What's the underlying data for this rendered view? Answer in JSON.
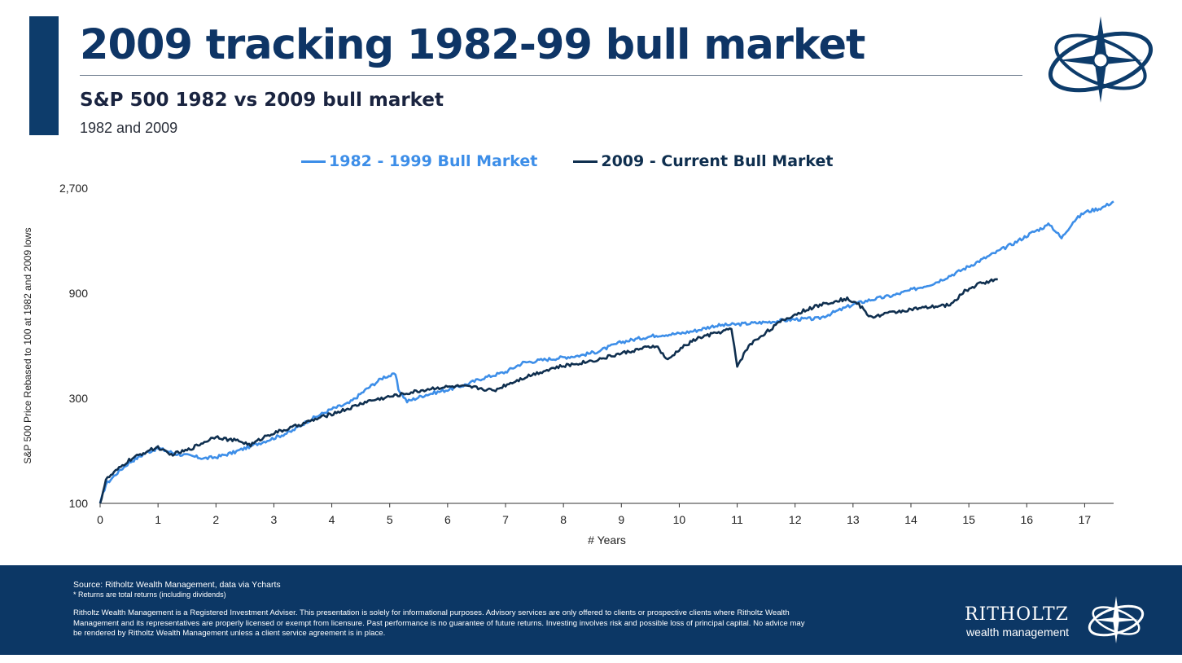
{
  "header": {
    "title": "2009 tracking 1982-99 bull market",
    "subtitle": "S&P 500 1982 vs 2009 bull market",
    "subtitle2": "1982 and 2009"
  },
  "colors": {
    "navy": "#0d3c6b",
    "series_1982": "#3d8ee8",
    "series_2009": "#0f2f4f",
    "footer_bg": "#0c3765"
  },
  "chart_data": {
    "type": "line",
    "title": "",
    "xlabel": "# Years",
    "ylabel": "S&P 500 Price Rebased to 100 at 1982 and 2009 lows",
    "y_scale": "log",
    "xlim": [
      0,
      17.5
    ],
    "ylim": [
      100,
      2700
    ],
    "x_ticks": [
      0,
      1,
      2,
      3,
      4,
      5,
      6,
      7,
      8,
      9,
      10,
      11,
      12,
      13,
      14,
      15,
      16,
      17
    ],
    "y_ticks": [
      100,
      300,
      900,
      2700
    ],
    "y_tick_labels": [
      "100",
      "300",
      "900",
      "2,700"
    ],
    "grid": false,
    "legend_position": "top",
    "series": [
      {
        "name": "1982 - 1999 Bull Market",
        "color": "#3d8ee8",
        "points": [
          [
            0,
            100
          ],
          [
            0.1,
            122
          ],
          [
            0.3,
            138
          ],
          [
            0.5,
            153
          ],
          [
            0.8,
            170
          ],
          [
            1.0,
            178
          ],
          [
            1.3,
            168
          ],
          [
            1.5,
            165
          ],
          [
            1.8,
            160
          ],
          [
            2.0,
            162
          ],
          [
            2.3,
            170
          ],
          [
            2.6,
            182
          ],
          [
            3.0,
            198
          ],
          [
            3.3,
            212
          ],
          [
            3.6,
            238
          ],
          [
            4.0,
            268
          ],
          [
            4.3,
            285
          ],
          [
            4.6,
            330
          ],
          [
            4.9,
            375
          ],
          [
            5.1,
            385
          ],
          [
            5.15,
            330
          ],
          [
            5.3,
            290
          ],
          [
            5.6,
            310
          ],
          [
            6.0,
            328
          ],
          [
            6.3,
            345
          ],
          [
            6.6,
            370
          ],
          [
            7.0,
            395
          ],
          [
            7.3,
            435
          ],
          [
            7.7,
            450
          ],
          [
            8.0,
            460
          ],
          [
            8.3,
            470
          ],
          [
            8.6,
            490
          ],
          [
            9.0,
            540
          ],
          [
            9.3,
            560
          ],
          [
            9.6,
            580
          ],
          [
            10.0,
            590
          ],
          [
            10.3,
            610
          ],
          [
            10.6,
            640
          ],
          [
            11.0,
            650
          ],
          [
            11.5,
            665
          ],
          [
            12.0,
            685
          ],
          [
            12.4,
            690
          ],
          [
            12.8,
            760
          ],
          [
            13.0,
            800
          ],
          [
            13.3,
            840
          ],
          [
            13.7,
            880
          ],
          [
            14.0,
            930
          ],
          [
            14.4,
            1000
          ],
          [
            14.8,
            1120
          ],
          [
            15.1,
            1230
          ],
          [
            15.4,
            1350
          ],
          [
            15.8,
            1530
          ],
          [
            16.1,
            1700
          ],
          [
            16.4,
            1850
          ],
          [
            16.6,
            1600
          ],
          [
            16.8,
            1900
          ],
          [
            17.0,
            2100
          ],
          [
            17.3,
            2200
          ],
          [
            17.5,
            2350
          ]
        ]
      },
      {
        "name": "2009 - Current Bull Market",
        "color": "#0f2f4f",
        "points": [
          [
            0,
            100
          ],
          [
            0.1,
            128
          ],
          [
            0.3,
            142
          ],
          [
            0.5,
            157
          ],
          [
            0.8,
            172
          ],
          [
            1.0,
            180
          ],
          [
            1.2,
            166
          ],
          [
            1.5,
            174
          ],
          [
            1.8,
            190
          ],
          [
            2.0,
            202
          ],
          [
            2.2,
            195
          ],
          [
            2.4,
            192
          ],
          [
            2.6,
            184
          ],
          [
            2.9,
            205
          ],
          [
            3.2,
            216
          ],
          [
            3.6,
            235
          ],
          [
            4.0,
            255
          ],
          [
            4.3,
            270
          ],
          [
            4.6,
            290
          ],
          [
            5.0,
            305
          ],
          [
            5.4,
            320
          ],
          [
            5.8,
            335
          ],
          [
            6.2,
            340
          ],
          [
            6.5,
            335
          ],
          [
            6.8,
            325
          ],
          [
            7.0,
            345
          ],
          [
            7.4,
            380
          ],
          [
            7.8,
            410
          ],
          [
            8.2,
            430
          ],
          [
            8.6,
            450
          ],
          [
            9.0,
            480
          ],
          [
            9.3,
            500
          ],
          [
            9.6,
            520
          ],
          [
            9.8,
            445
          ],
          [
            10.0,
            500
          ],
          [
            10.3,
            560
          ],
          [
            10.6,
            590
          ],
          [
            10.9,
            620
          ],
          [
            11.0,
            420
          ],
          [
            11.2,
            520
          ],
          [
            11.5,
            600
          ],
          [
            11.8,
            680
          ],
          [
            12.2,
            760
          ],
          [
            12.6,
            820
          ],
          [
            12.9,
            850
          ],
          [
            13.1,
            800
          ],
          [
            13.3,
            700
          ],
          [
            13.6,
            730
          ],
          [
            14.0,
            760
          ],
          [
            14.4,
            780
          ],
          [
            14.7,
            800
          ],
          [
            14.9,
            910
          ],
          [
            15.2,
            1000
          ],
          [
            15.5,
            1040
          ]
        ]
      }
    ]
  },
  "footer": {
    "source": "Source: Ritholtz Wealth Management, data via Ycharts",
    "note": "* Returns are total returns (including dividends)",
    "disclaimer": "Ritholtz Wealth Management is a Registered Investment Adviser. This presentation is solely for informational purposes. Advisory services are only offered to clients or prospective clients where Ritholtz Wealth Management and its representatives are properly licensed or exempt from licensure. Past performance is no guarantee of future returns. Investing involves risk and possible loss of principal capital. No advice may be rendered by Ritholtz Wealth Management unless a client service agreement is in place.",
    "brand_name": "RITHOLTZ",
    "brand_tag": "wealth management"
  }
}
